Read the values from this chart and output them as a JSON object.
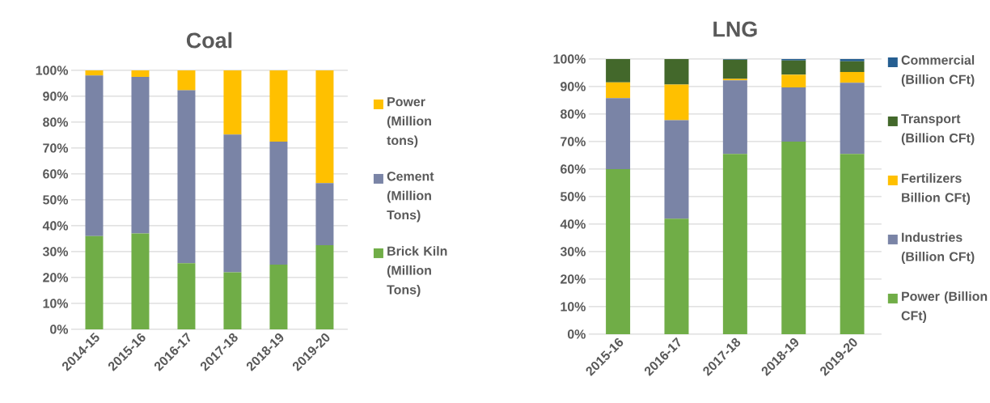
{
  "chart_data": [
    {
      "type": "bar",
      "stacked": true,
      "title": "Coal",
      "categories": [
        "2014-15",
        "2015-16",
        "2016-17",
        "2017-18",
        "2018-19",
        "2019-20"
      ],
      "series": [
        {
          "name": "Brick Kiln (Million Tons)",
          "color": "#70ad47",
          "values": [
            36,
            37,
            25.5,
            22,
            25,
            32.5
          ]
        },
        {
          "name": "Cement (Million Tons)",
          "color": "#7a84a6",
          "values": [
            62,
            60.5,
            66.8,
            53.2,
            47.5,
            24
          ]
        },
        {
          "name": "Power (Million tons)",
          "color": "#ffc000",
          "values": [
            2,
            2.5,
            7.7,
            24.8,
            27.5,
            43.5
          ]
        }
      ],
      "ylim": [
        0,
        100
      ],
      "yticks": [
        {
          "value": 0,
          "label": "0%"
        },
        {
          "value": 10,
          "label": "10%"
        },
        {
          "value": 20,
          "label": "20%"
        },
        {
          "value": 30,
          "label": "30%"
        },
        {
          "value": 40,
          "label": "40%"
        },
        {
          "value": 50,
          "label": "50%"
        },
        {
          "value": 60,
          "label": "60%"
        },
        {
          "value": 70,
          "label": "70%"
        },
        {
          "value": 80,
          "label": "80%"
        },
        {
          "value": 90,
          "label": "90%"
        },
        {
          "value": 100,
          "label": "100%"
        }
      ],
      "grid": "y",
      "legend": "right"
    },
    {
      "type": "bar",
      "stacked": true,
      "title": "LNG",
      "categories": [
        "2015-16",
        "2016-17",
        "2017-18",
        "2018-19",
        "2019-20"
      ],
      "series": [
        {
          "name": "Power (Billion CFt)",
          "color": "#70ad47",
          "values": [
            60,
            42,
            65.5,
            70,
            65.5
          ]
        },
        {
          "name": "Industries (Billion CFt)",
          "color": "#7a84a6",
          "values": [
            25.8,
            35.8,
            26.8,
            19.7,
            25.9
          ]
        },
        {
          "name": "Fertilizers Billion CFt)",
          "color": "#ffc000",
          "values": [
            5.7,
            12.9,
            0.5,
            4.6,
            3.9
          ]
        },
        {
          "name": "Transport (Billion CFt)",
          "color": "#43682b",
          "values": [
            8.5,
            9.3,
            7.0,
            5.2,
            3.9
          ]
        },
        {
          "name": "Commercial (Billion CFt)",
          "color": "#255e91",
          "values": [
            0,
            0,
            0.2,
            0.5,
            0.8
          ]
        }
      ],
      "ylim": [
        0,
        100
      ],
      "yticks": [
        {
          "value": 0,
          "label": "0%"
        },
        {
          "value": 10,
          "label": "10%"
        },
        {
          "value": 20,
          "label": "20%"
        },
        {
          "value": 30,
          "label": "30%"
        },
        {
          "value": 40,
          "label": "40%"
        },
        {
          "value": 50,
          "label": "50%"
        },
        {
          "value": 60,
          "label": "60%"
        },
        {
          "value": 70,
          "label": "70%"
        },
        {
          "value": 80,
          "label": "80%"
        },
        {
          "value": 90,
          "label": "90%"
        },
        {
          "value": 100,
          "label": "100%"
        }
      ],
      "grid": "y",
      "legend": "right"
    }
  ]
}
